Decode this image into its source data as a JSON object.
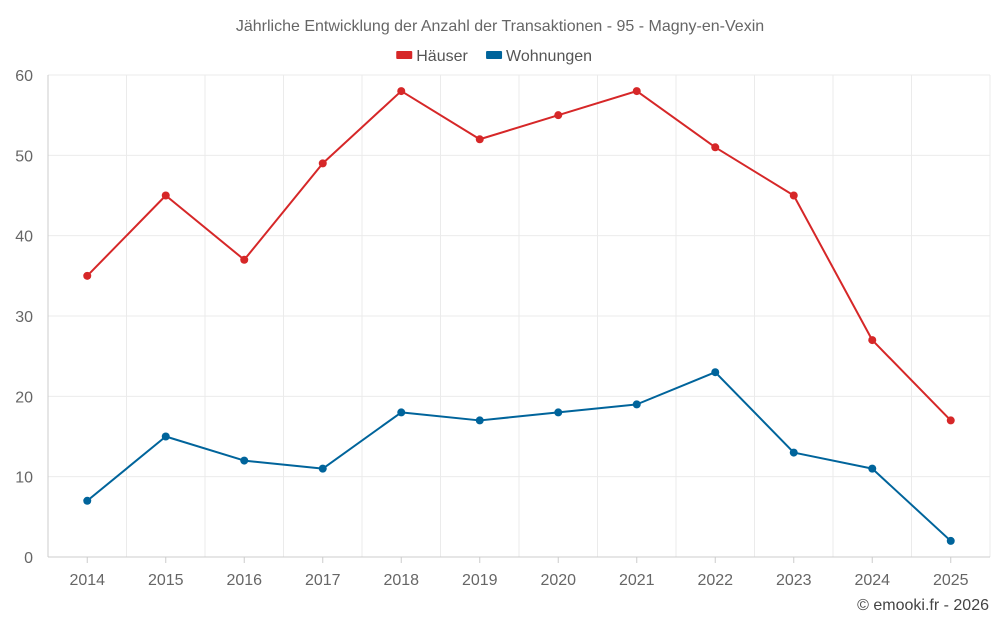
{
  "chart_data": {
    "type": "line",
    "title": "Jährliche Entwicklung der Anzahl der Transaktionen - 95 - Magny-en-Vexin",
    "categories": [
      "2014",
      "2015",
      "2016",
      "2017",
      "2018",
      "2019",
      "2020",
      "2021",
      "2022",
      "2023",
      "2024",
      "2025"
    ],
    "series": [
      {
        "name": "Häuser",
        "color": "#d62728",
        "values": [
          35,
          45,
          37,
          49,
          58,
          52,
          55,
          58,
          51,
          45,
          27,
          17
        ]
      },
      {
        "name": "Wohnungen",
        "color": "#00649b",
        "values": [
          7,
          15,
          12,
          11,
          18,
          17,
          18,
          19,
          23,
          13,
          11,
          2
        ]
      }
    ],
    "ylim": [
      0,
      60
    ],
    "yticks": [
      0,
      10,
      20,
      30,
      40,
      50,
      60
    ],
    "xlabel": "",
    "ylabel": "",
    "grid": true,
    "legend": "top-center"
  },
  "credit": "© emooki.fr - 2026"
}
